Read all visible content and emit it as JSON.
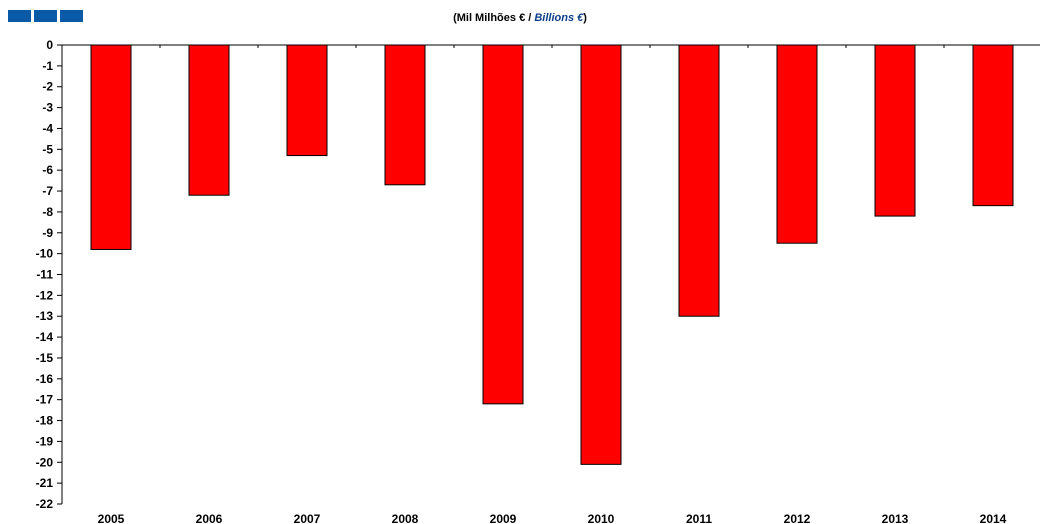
{
  "header": {
    "title_prefix": "(Mil Milhões € / ",
    "title_emphasis": "Billions €",
    "title_suffix": ")"
  },
  "colors": {
    "logo": "#0b5aa6",
    "bar_fill": "#ff0000",
    "bar_stroke": "#000000",
    "title_emphasis": "#0b3f8a"
  },
  "chart_data": {
    "type": "bar",
    "title": "(Mil Milhões € / Billions €)",
    "xlabel": "",
    "ylabel": "",
    "categories": [
      "2005",
      "2006",
      "2007",
      "2008",
      "2009",
      "2010",
      "2011",
      "2012",
      "2013",
      "2014"
    ],
    "values": [
      -9.8,
      -7.2,
      -5.3,
      -6.7,
      -17.2,
      -20.1,
      -13.0,
      -9.5,
      -8.2,
      -7.7
    ],
    "ylim": [
      -22,
      0
    ],
    "yticks": [
      "0",
      "-1",
      "-2",
      "-3",
      "-4",
      "-5",
      "-6",
      "-7",
      "-8",
      "-9",
      "-10",
      "-11",
      "-12",
      "-13",
      "-14",
      "-15",
      "-16",
      "-17",
      "-18",
      "-19",
      "-20",
      "-21",
      "-22"
    ],
    "grid": false,
    "legend": "none"
  }
}
